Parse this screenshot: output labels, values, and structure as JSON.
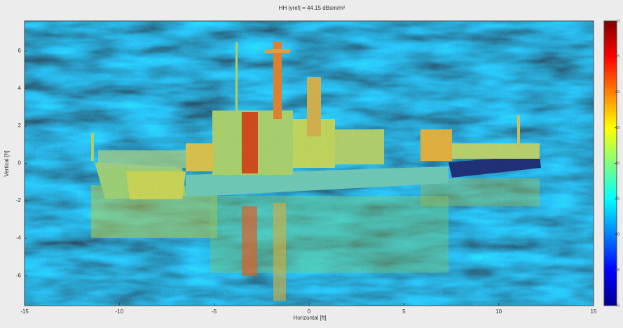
{
  "chart_data": {
    "type": "heatmap",
    "title": "HH |γref| = 44.15 dBsm/m²",
    "xlabel": "Horizontal [ft]",
    "ylabel": "Vertical [ft]",
    "xlim": [
      -15,
      15
    ],
    "xticks": [
      -15,
      -10,
      -5,
      0,
      5,
      10,
      15
    ],
    "ylim": [
      -7.6,
      7.6
    ],
    "yticks": [
      -6,
      -4,
      -2,
      0,
      2,
      4,
      6
    ],
    "clim": [
      -40,
      0
    ],
    "cticks": [
      -40,
      -35,
      -30,
      -25,
      -20,
      -15,
      -10,
      -5,
      0
    ],
    "colormap": [
      "#00008f",
      "#0000ff",
      "#0080ff",
      "#00ffff",
      "#80ff80",
      "#ffff00",
      "#ff8000",
      "#ff0000",
      "#800000"
    ]
  }
}
